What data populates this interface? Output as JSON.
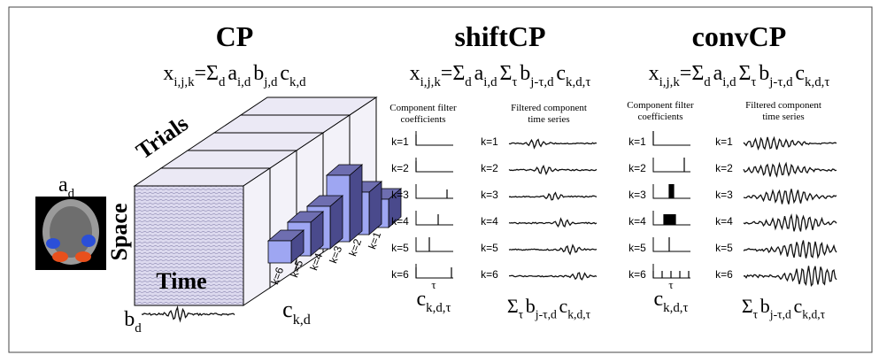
{
  "panels": [
    {
      "title": "CP",
      "formula": [
        {
          "base": "x",
          "sub": "i,j,k"
        },
        {
          "base": "=Σ",
          "sub": "d"
        },
        {
          "base": "a",
          "sub": "i,d"
        },
        {
          "base": "b",
          "sub": "j,d"
        },
        {
          "base": "c",
          "sub": "k,d"
        }
      ]
    },
    {
      "title": "shiftCP",
      "formula": [
        {
          "base": "x",
          "sub": "i,j,k"
        },
        {
          "base": "=Σ",
          "sub": "d"
        },
        {
          "base": "a",
          "sub": "i,d"
        },
        {
          "base": "Σ",
          "sub": "τ"
        },
        {
          "base": "b",
          "sub": "j-τ,d"
        },
        {
          "base": "c",
          "sub": "k,d,τ"
        }
      ]
    },
    {
      "title": "convCP",
      "formula": [
        {
          "base": "x",
          "sub": "i,j,k"
        },
        {
          "base": "=Σ",
          "sub": "d"
        },
        {
          "base": "a",
          "sub": "i,d"
        },
        {
          "base": "Σ",
          "sub": "τ"
        },
        {
          "base": "b",
          "sub": "j-τ,d"
        },
        {
          "base": "c",
          "sub": "k,d,τ"
        }
      ]
    }
  ],
  "cp": {
    "trials": "Trials",
    "space": "Space",
    "time": "Time",
    "a": [
      {
        "base": "a",
        "sub": "d"
      }
    ],
    "b": [
      {
        "base": "b",
        "sub": "d"
      }
    ],
    "c": [
      {
        "base": "c",
        "sub": "k,d"
      }
    ],
    "bar_labels": [
      "k=6",
      "k=5",
      "k=4",
      "k=3",
      "k=2",
      "k=1"
    ]
  },
  "filters": [
    {
      "coef_header": [
        "Component filter",
        "coefficients"
      ],
      "series_header": [
        "Filtered component",
        "time series"
      ],
      "coef_rows": [
        "k=1",
        "k=2",
        "k=3",
        "k=4",
        "k=5",
        "k=6"
      ],
      "series_rows": [
        "k=1",
        "k=2",
        "k=3",
        "k=4",
        "k=5",
        "k=6"
      ],
      "tau": "τ",
      "coef_label": [
        {
          "base": "c",
          "sub": "k,d,τ"
        }
      ],
      "series_label": [
        {
          "base": "Σ",
          "sub": "τ"
        },
        {
          "base": "b",
          "sub": "j-τ,d"
        },
        {
          "base": "c",
          "sub": "k,d,τ"
        }
      ]
    },
    {
      "coef_header": [
        "Component filter",
        "coefficients"
      ],
      "series_header": [
        "Filtered component",
        "time series"
      ],
      "coef_rows": [
        "k=1",
        "k=2",
        "k=3",
        "k=4",
        "k=5",
        "k=6"
      ],
      "series_rows": [
        "k=1",
        "k=2",
        "k=3",
        "k=4",
        "k=5",
        "k=6"
      ],
      "tau": "τ",
      "coef_label": [
        {
          "base": "c",
          "sub": "k,d,τ"
        }
      ],
      "series_label": [
        {
          "base": "Σ",
          "sub": "τ"
        },
        {
          "base": "b",
          "sub": "j-τ,d"
        },
        {
          "base": "c",
          "sub": "k,d,τ"
        }
      ]
    }
  ]
}
